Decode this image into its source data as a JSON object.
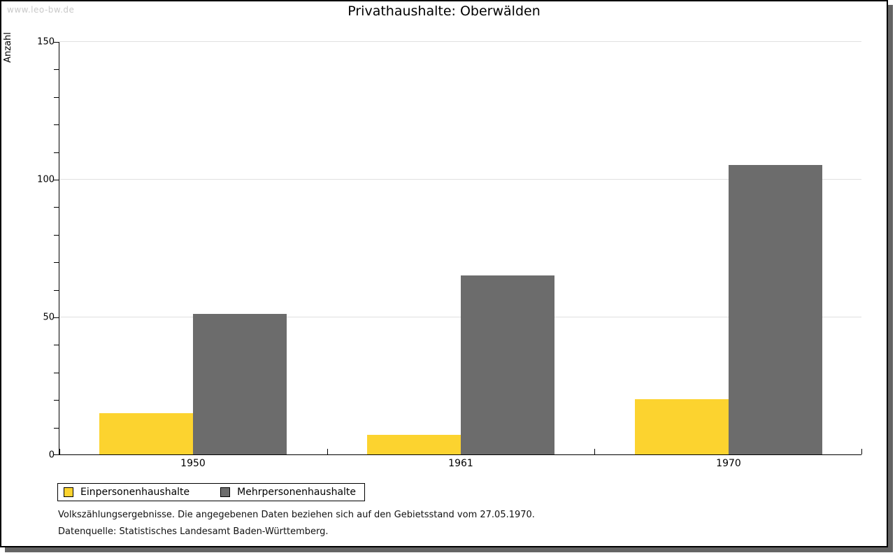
{
  "watermark": "www.leo-bw.de",
  "title": "Privathaushalte: Oberwälden",
  "chart_data": {
    "type": "bar",
    "title": "Privathaushalte: Oberwälden",
    "xlabel": "",
    "ylabel": "Anzahl",
    "categories": [
      "1950",
      "1961",
      "1970"
    ],
    "series": [
      {
        "name": "Einpersonenhaushalte",
        "color": "#FCD32F",
        "values": [
          15,
          7,
          20
        ]
      },
      {
        "name": "Mehrpersonenhaushalte",
        "color": "#6C6C6C",
        "values": [
          51,
          65,
          105
        ]
      }
    ],
    "ylim": [
      0,
      150
    ],
    "yticks": [
      0,
      50,
      100,
      150
    ],
    "minor_tick_step": 10,
    "grid": true,
    "gridline_color": "#e0e0e0",
    "legend_position": "bottom-left"
  },
  "footer": {
    "line1": "Volkszählungsergebnisse. Die angegebenen Daten beziehen sich auf den Gebietsstand vom 27.05.1970.",
    "line2": "Datenquelle: Statistisches Landesamt Baden-Württemberg."
  }
}
